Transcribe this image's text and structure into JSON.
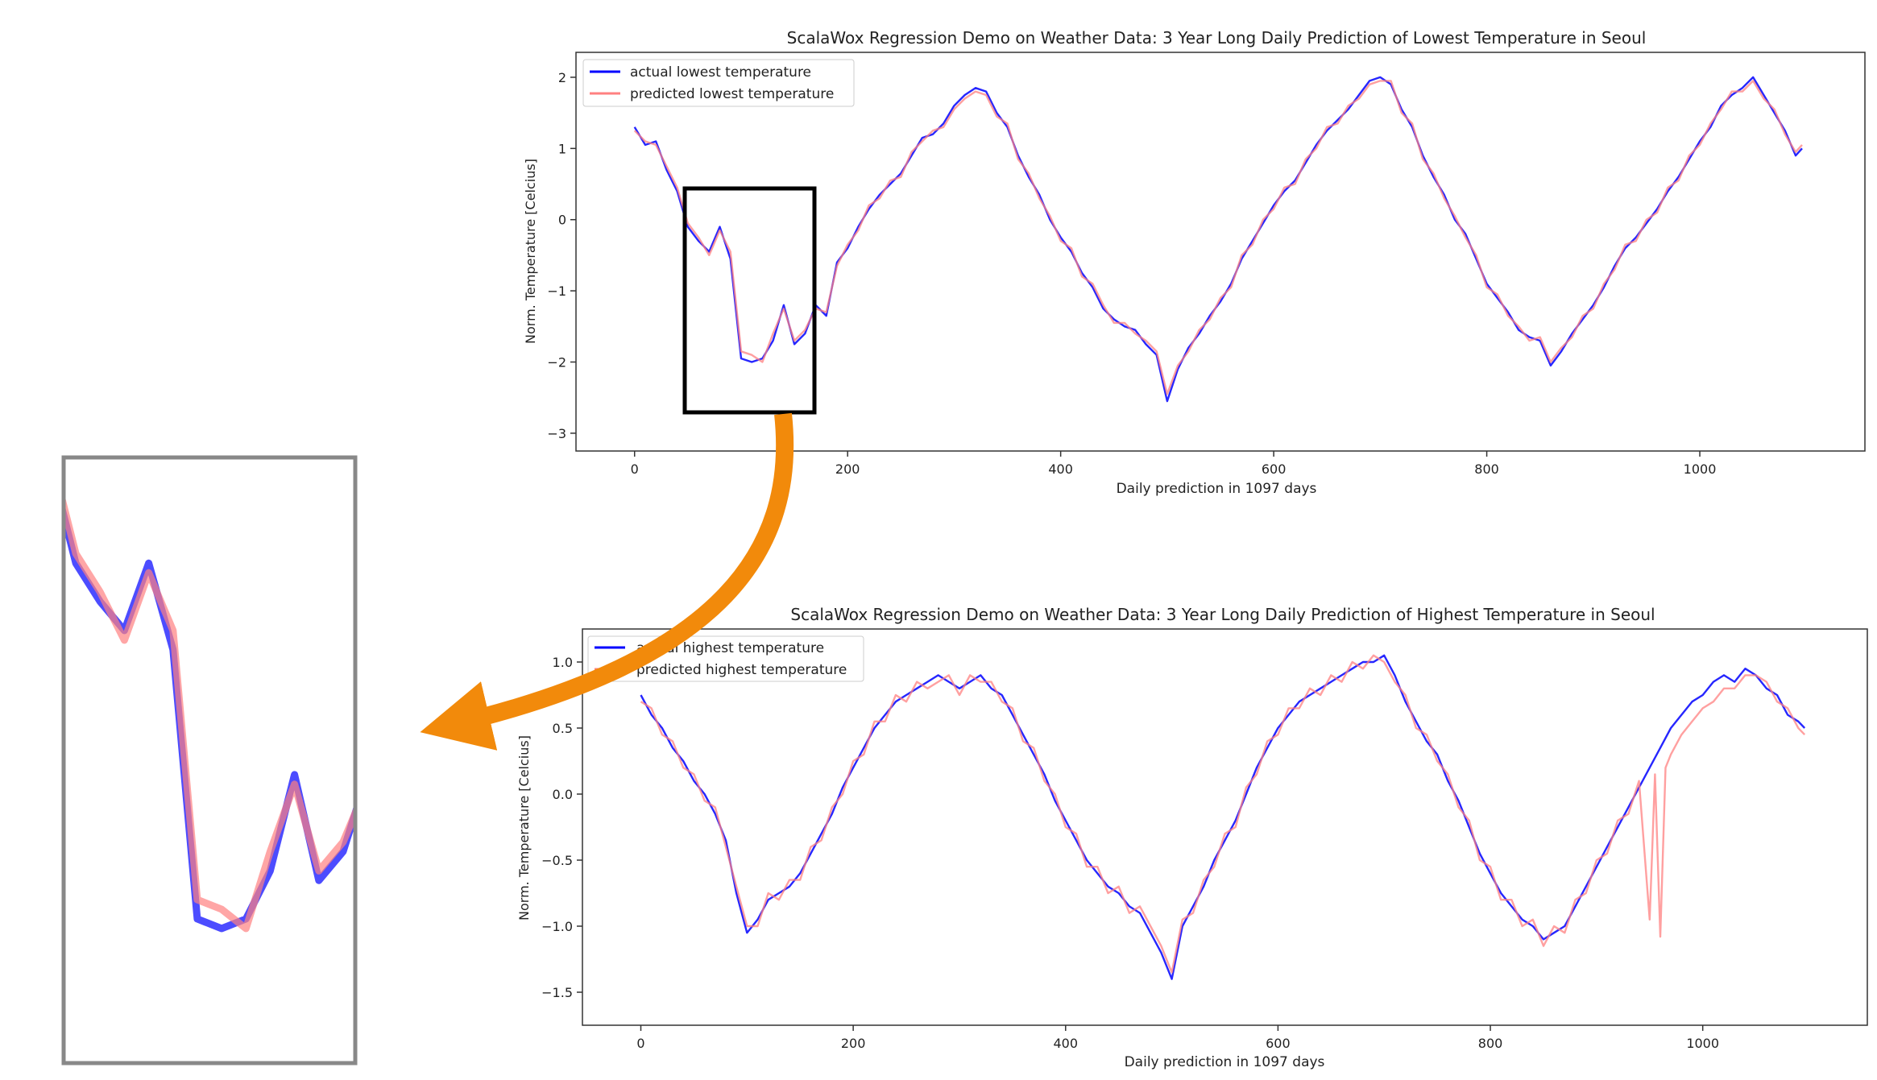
{
  "chart_data": [
    {
      "type": "line",
      "title": "ScalaWox Regression Demo on Weather Data: 3 Year Long Daily Prediction of Lowest Temperature in Seoul",
      "xlabel": "Daily prediction in 1097 days",
      "ylabel": "Norm. Temperature [Celcius]",
      "xlim": [
        -55,
        1155
      ],
      "ylim": [
        -3.25,
        2.35
      ],
      "xticks": [
        0,
        200,
        400,
        600,
        800,
        1000
      ],
      "yticks": [
        -3,
        -2,
        -1,
        0,
        1,
        2
      ],
      "ytick_labels": [
        "−3",
        "−2",
        "−1",
        "0",
        "1",
        "2"
      ],
      "grid": false,
      "legend_position": "top-left",
      "series": [
        {
          "name": "actual lowest temperature",
          "color": "#0000ff",
          "x": [
            0,
            10,
            20,
            30,
            40,
            50,
            60,
            70,
            80,
            90,
            100,
            110,
            120,
            130,
            140,
            150,
            160,
            170,
            180,
            190,
            200,
            210,
            220,
            230,
            240,
            250,
            260,
            270,
            280,
            290,
            300,
            310,
            320,
            330,
            340,
            350,
            360,
            370,
            380,
            390,
            400,
            410,
            420,
            430,
            440,
            450,
            460,
            470,
            480,
            490,
            500,
            510,
            520,
            530,
            540,
            550,
            560,
            570,
            580,
            590,
            600,
            610,
            620,
            630,
            640,
            650,
            660,
            670,
            680,
            690,
            700,
            710,
            720,
            730,
            740,
            750,
            760,
            770,
            780,
            790,
            800,
            810,
            820,
            830,
            840,
            850,
            860,
            870,
            880,
            890,
            900,
            910,
            920,
            930,
            940,
            950,
            960,
            970,
            980,
            990,
            1000,
            1010,
            1020,
            1030,
            1040,
            1050,
            1060,
            1070,
            1080,
            1090,
            1096
          ],
          "y": [
            1.3,
            1.05,
            1.1,
            0.7,
            0.4,
            -0.1,
            -0.3,
            -0.45,
            -0.1,
            -0.55,
            -1.95,
            -2.0,
            -1.95,
            -1.7,
            -1.2,
            -1.75,
            -1.6,
            -1.2,
            -1.35,
            -0.6,
            -0.4,
            -0.1,
            0.15,
            0.35,
            0.5,
            0.65,
            0.9,
            1.15,
            1.2,
            1.35,
            1.6,
            1.75,
            1.85,
            1.8,
            1.5,
            1.3,
            0.9,
            0.6,
            0.35,
            0.0,
            -0.25,
            -0.45,
            -0.75,
            -0.95,
            -1.25,
            -1.4,
            -1.5,
            -1.55,
            -1.75,
            -1.9,
            -2.55,
            -2.1,
            -1.8,
            -1.6,
            -1.35,
            -1.15,
            -0.9,
            -0.55,
            -0.3,
            -0.05,
            0.2,
            0.4,
            0.55,
            0.8,
            1.05,
            1.25,
            1.4,
            1.55,
            1.75,
            1.95,
            2.0,
            1.9,
            1.55,
            1.3,
            0.9,
            0.6,
            0.35,
            0.0,
            -0.2,
            -0.55,
            -0.9,
            -1.1,
            -1.3,
            -1.55,
            -1.65,
            -1.7,
            -2.05,
            -1.85,
            -1.6,
            -1.4,
            -1.2,
            -0.95,
            -0.65,
            -0.4,
            -0.25,
            -0.05,
            0.15,
            0.4,
            0.6,
            0.85,
            1.1,
            1.3,
            1.6,
            1.75,
            1.85,
            2.0,
            1.75,
            1.5,
            1.25,
            0.9,
            1.0
          ]
        },
        {
          "name": "predicted lowest temperature",
          "color": "#ff8080",
          "x": [
            0,
            10,
            20,
            30,
            40,
            50,
            60,
            70,
            80,
            90,
            100,
            110,
            120,
            130,
            140,
            150,
            160,
            170,
            180,
            190,
            200,
            210,
            220,
            230,
            240,
            250,
            260,
            270,
            280,
            290,
            300,
            310,
            320,
            330,
            340,
            350,
            360,
            370,
            380,
            390,
            400,
            410,
            420,
            430,
            440,
            450,
            460,
            470,
            480,
            490,
            500,
            510,
            520,
            530,
            540,
            550,
            560,
            570,
            580,
            590,
            600,
            610,
            620,
            630,
            640,
            650,
            660,
            670,
            680,
            690,
            700,
            710,
            720,
            730,
            740,
            750,
            760,
            770,
            780,
            790,
            800,
            810,
            820,
            830,
            840,
            850,
            860,
            870,
            880,
            890,
            900,
            910,
            920,
            930,
            940,
            950,
            960,
            970,
            980,
            990,
            1000,
            1010,
            1020,
            1030,
            1040,
            1050,
            1060,
            1070,
            1080,
            1090,
            1096
          ],
          "y": [
            1.25,
            1.1,
            1.05,
            0.75,
            0.45,
            -0.05,
            -0.25,
            -0.5,
            -0.15,
            -0.45,
            -1.85,
            -1.9,
            -2.0,
            -1.6,
            -1.25,
            -1.7,
            -1.55,
            -1.25,
            -1.3,
            -0.65,
            -0.35,
            -0.15,
            0.2,
            0.3,
            0.55,
            0.6,
            0.95,
            1.1,
            1.25,
            1.3,
            1.55,
            1.7,
            1.8,
            1.75,
            1.45,
            1.35,
            0.85,
            0.65,
            0.3,
            0.05,
            -0.3,
            -0.4,
            -0.8,
            -0.9,
            -1.2,
            -1.45,
            -1.45,
            -1.6,
            -1.7,
            -1.85,
            -2.45,
            -2.05,
            -1.85,
            -1.55,
            -1.4,
            -1.1,
            -0.95,
            -0.5,
            -0.35,
            0.0,
            0.15,
            0.45,
            0.5,
            0.85,
            1.0,
            1.3,
            1.35,
            1.6,
            1.7,
            1.9,
            1.95,
            1.95,
            1.5,
            1.35,
            0.85,
            0.65,
            0.3,
            0.05,
            -0.25,
            -0.5,
            -0.95,
            -1.05,
            -1.35,
            -1.5,
            -1.7,
            -1.65,
            -2.0,
            -1.8,
            -1.65,
            -1.35,
            -1.25,
            -0.9,
            -0.7,
            -0.35,
            -0.3,
            0.0,
            0.1,
            0.45,
            0.55,
            0.9,
            1.05,
            1.35,
            1.55,
            1.8,
            1.8,
            1.95,
            1.7,
            1.55,
            1.2,
            0.95,
            1.05
          ]
        }
      ],
      "zoom_box_xrange": [
        45,
        165
      ],
      "zoom_box_yrange": [
        -2.7,
        0.45
      ]
    },
    {
      "type": "line",
      "title": "ScalaWox Regression Demo on Weather Data: 3 Year Long Daily Prediction of Highest Temperature in Seoul",
      "xlabel": "Daily prediction in 1097 days",
      "ylabel": "Norm. Temperature [Celcius]",
      "xlim": [
        -55,
        1155
      ],
      "ylim": [
        -1.75,
        1.25
      ],
      "xticks": [
        0,
        200,
        400,
        600,
        800,
        1000
      ],
      "yticks": [
        -1.5,
        -1.0,
        -0.5,
        0.0,
        0.5,
        1.0
      ],
      "ytick_labels": [
        "−1.5",
        "−1.0",
        "−0.5",
        "0.0",
        "0.5",
        "1.0"
      ],
      "grid": false,
      "legend_position": "top-left",
      "series": [
        {
          "name": "actual highest temperature",
          "color": "#0000ff",
          "x": [
            0,
            10,
            20,
            30,
            40,
            50,
            60,
            70,
            80,
            90,
            100,
            110,
            120,
            130,
            140,
            150,
            160,
            170,
            180,
            190,
            200,
            210,
            220,
            230,
            240,
            250,
            260,
            270,
            280,
            290,
            300,
            310,
            320,
            330,
            340,
            350,
            360,
            370,
            380,
            390,
            400,
            410,
            420,
            430,
            440,
            450,
            460,
            470,
            480,
            490,
            500,
            510,
            520,
            530,
            540,
            550,
            560,
            570,
            580,
            590,
            600,
            610,
            620,
            630,
            640,
            650,
            660,
            670,
            680,
            690,
            700,
            710,
            720,
            730,
            740,
            750,
            760,
            770,
            780,
            790,
            800,
            810,
            820,
            830,
            840,
            850,
            860,
            870,
            880,
            890,
            900,
            910,
            920,
            930,
            940,
            950,
            960,
            970,
            980,
            990,
            1000,
            1010,
            1020,
            1030,
            1040,
            1050,
            1060,
            1070,
            1080,
            1090,
            1096
          ],
          "y": [
            0.75,
            0.6,
            0.5,
            0.35,
            0.25,
            0.1,
            0.0,
            -0.15,
            -0.35,
            -0.75,
            -1.05,
            -0.95,
            -0.8,
            -0.75,
            -0.7,
            -0.6,
            -0.45,
            -0.3,
            -0.15,
            0.05,
            0.2,
            0.35,
            0.5,
            0.6,
            0.7,
            0.75,
            0.8,
            0.85,
            0.9,
            0.85,
            0.8,
            0.85,
            0.9,
            0.8,
            0.75,
            0.6,
            0.45,
            0.3,
            0.15,
            -0.05,
            -0.2,
            -0.35,
            -0.5,
            -0.6,
            -0.7,
            -0.75,
            -0.85,
            -0.9,
            -1.05,
            -1.2,
            -1.4,
            -1.0,
            -0.85,
            -0.7,
            -0.5,
            -0.35,
            -0.2,
            0.0,
            0.2,
            0.35,
            0.5,
            0.6,
            0.7,
            0.75,
            0.8,
            0.85,
            0.9,
            0.95,
            1.0,
            1.0,
            1.05,
            0.9,
            0.7,
            0.55,
            0.4,
            0.3,
            0.1,
            -0.05,
            -0.25,
            -0.45,
            -0.6,
            -0.75,
            -0.85,
            -0.95,
            -1.0,
            -1.1,
            -1.05,
            -1.0,
            -0.85,
            -0.7,
            -0.55,
            -0.4,
            -0.25,
            -0.1,
            0.05,
            0.2,
            0.35,
            0.5,
            0.6,
            0.7,
            0.75,
            0.85,
            0.9,
            0.85,
            0.95,
            0.9,
            0.8,
            0.75,
            0.6,
            0.55,
            0.5
          ]
        },
        {
          "name": "predicted highest temperature",
          "color": "#ff8080",
          "x": [
            0,
            10,
            20,
            30,
            40,
            50,
            60,
            70,
            80,
            90,
            100,
            110,
            120,
            130,
            140,
            150,
            160,
            170,
            180,
            190,
            200,
            210,
            220,
            230,
            240,
            250,
            260,
            270,
            280,
            290,
            300,
            310,
            320,
            330,
            340,
            350,
            360,
            370,
            380,
            390,
            400,
            410,
            420,
            430,
            440,
            450,
            460,
            470,
            480,
            490,
            500,
            510,
            520,
            530,
            540,
            550,
            560,
            570,
            580,
            590,
            600,
            610,
            620,
            630,
            640,
            650,
            660,
            670,
            680,
            690,
            700,
            710,
            720,
            730,
            740,
            750,
            760,
            770,
            780,
            790,
            800,
            810,
            820,
            830,
            840,
            850,
            860,
            870,
            880,
            890,
            900,
            910,
            920,
            930,
            940,
            950,
            955,
            960,
            965,
            970,
            980,
            990,
            1000,
            1010,
            1020,
            1030,
            1040,
            1050,
            1060,
            1070,
            1080,
            1090,
            1096
          ],
          "y": [
            0.7,
            0.65,
            0.45,
            0.4,
            0.2,
            0.15,
            -0.05,
            -0.1,
            -0.4,
            -0.7,
            -1.0,
            -1.0,
            -0.75,
            -0.8,
            -0.65,
            -0.65,
            -0.4,
            -0.35,
            -0.1,
            0.0,
            0.25,
            0.3,
            0.55,
            0.55,
            0.75,
            0.7,
            0.85,
            0.8,
            0.85,
            0.9,
            0.75,
            0.9,
            0.85,
            0.85,
            0.7,
            0.65,
            0.4,
            0.35,
            0.1,
            0.0,
            -0.25,
            -0.3,
            -0.55,
            -0.55,
            -0.75,
            -0.7,
            -0.9,
            -0.85,
            -1.0,
            -1.15,
            -1.35,
            -0.95,
            -0.9,
            -0.65,
            -0.55,
            -0.3,
            -0.25,
            0.05,
            0.15,
            0.4,
            0.45,
            0.65,
            0.65,
            0.8,
            0.75,
            0.9,
            0.85,
            1.0,
            0.95,
            1.05,
            1.0,
            0.85,
            0.75,
            0.5,
            0.45,
            0.25,
            0.15,
            -0.1,
            -0.2,
            -0.5,
            -0.55,
            -0.8,
            -0.8,
            -1.0,
            -0.95,
            -1.15,
            -1.0,
            -1.05,
            -0.8,
            -0.75,
            -0.5,
            -0.45,
            -0.2,
            -0.15,
            0.1,
            -0.95,
            0.15,
            -1.08,
            0.2,
            0.3,
            0.45,
            0.55,
            0.65,
            0.7,
            0.8,
            0.8,
            0.9,
            0.9,
            0.85,
            0.7,
            0.65,
            0.5,
            0.45
          ]
        }
      ]
    }
  ]
}
